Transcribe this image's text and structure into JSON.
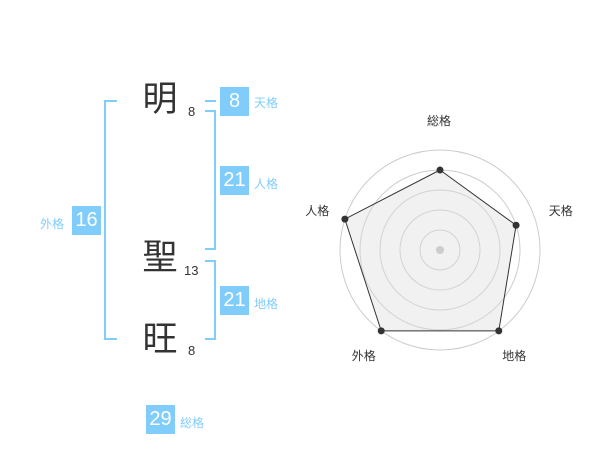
{
  "name": {
    "chars": [
      {
        "char": "明",
        "strokes": "8"
      },
      {
        "char": "聖",
        "strokes": "13"
      },
      {
        "char": "旺",
        "strokes": "8"
      }
    ]
  },
  "fortunes": {
    "tenkaku": {
      "label": "天格",
      "value": "8"
    },
    "jinkaku": {
      "label": "人格",
      "value": "21"
    },
    "chikaku": {
      "label": "地格",
      "value": "21"
    },
    "gaikaku": {
      "label": "外格",
      "value": "16"
    },
    "soukaku": {
      "label": "総格",
      "value": "29"
    }
  },
  "colors": {
    "accent": "#80cdfb",
    "text": "#333333"
  },
  "chart_data": {
    "type": "radar",
    "axes": [
      "総格",
      "天格",
      "地格",
      "外格",
      "人格"
    ],
    "values": [
      4,
      4,
      5,
      5,
      5
    ],
    "range": [
      0,
      5
    ],
    "rings": 5
  }
}
